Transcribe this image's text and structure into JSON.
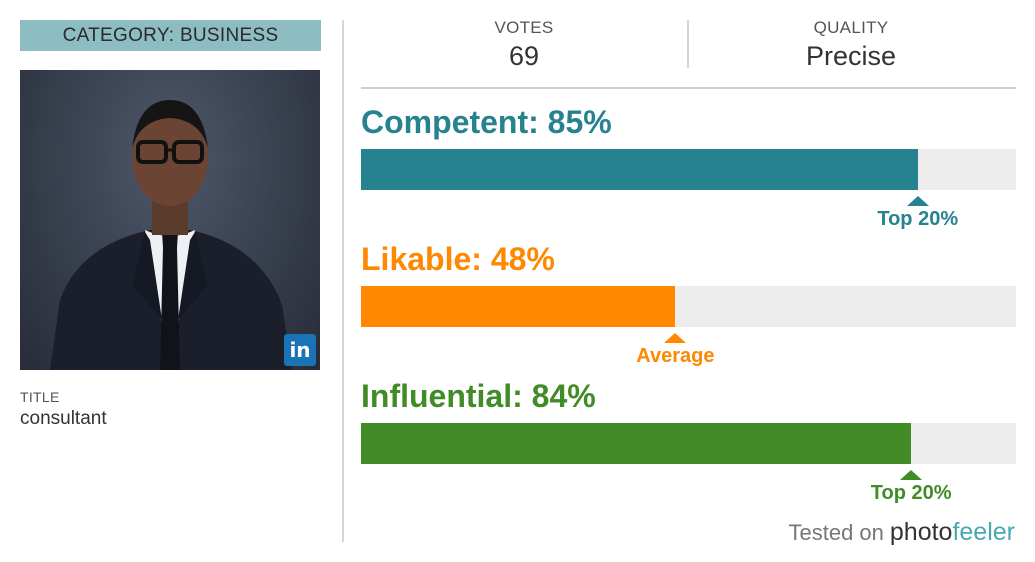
{
  "category": "CATEGORY: BUSINESS",
  "profile": {
    "title_label": "TITLE",
    "title_value": "consultant",
    "linkedin_glyph": "in"
  },
  "header": {
    "votes_label": "VOTES",
    "votes_value": "69",
    "quality_label": "QUALITY",
    "quality_value": "Precise"
  },
  "metrics": [
    {
      "key": "competent",
      "label": "Competent: 85%",
      "percent": 85,
      "color": "#26828f",
      "rank_label": "Top 20%",
      "rank_position": 85
    },
    {
      "key": "likable",
      "label": "Likable: 48%",
      "percent": 48,
      "color": "#ff8800",
      "rank_label": "Average",
      "rank_position": 48
    },
    {
      "key": "influential",
      "label": "Influential: 84%",
      "percent": 84,
      "color": "#418c26",
      "rank_label": "Top 20%",
      "rank_position": 84
    }
  ],
  "footer": {
    "tested_on": "Tested on",
    "brand_photo": "photo",
    "brand_feeler": "feeler"
  }
}
